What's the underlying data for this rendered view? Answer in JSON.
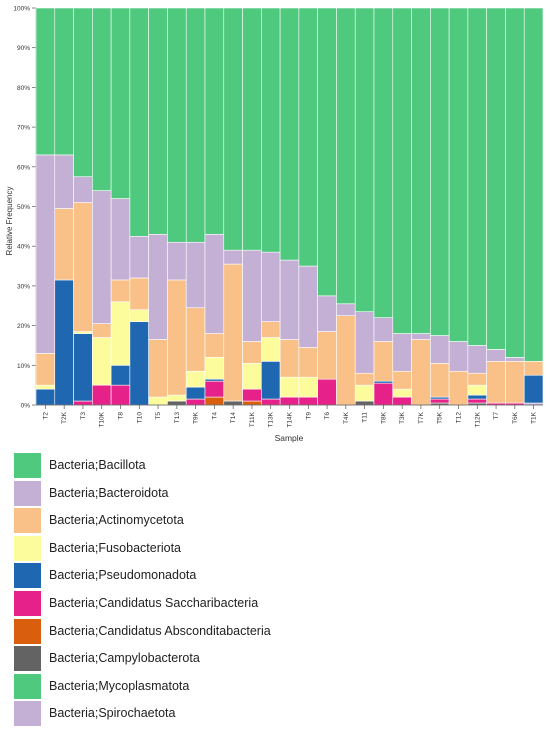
{
  "chart_data": {
    "type": "bar",
    "stacked": true,
    "xlabel": "Sample",
    "ylabel": "Relative Frequency",
    "ylim": [
      0,
      1
    ],
    "yticks": [
      "0%",
      "10%",
      "20%",
      "30%",
      "40%",
      "50%",
      "60%",
      "70%",
      "80%",
      "90%",
      "100%"
    ],
    "categories": [
      "T2",
      "T2K",
      "T3",
      "T10K",
      "T8",
      "T10",
      "T5",
      "T13",
      "T9K",
      "T4",
      "T14",
      "T11K",
      "T13K",
      "T14K",
      "T9",
      "T6",
      "T4K",
      "T11",
      "T8K",
      "T3K",
      "T7K",
      "T5K",
      "T12",
      "T12K",
      "T7",
      "T6K",
      "T1K"
    ],
    "series": [
      {
        "name": "Bacteria;Spirochaetota",
        "color": "#c5b0d5",
        "values": [
          0,
          0,
          0,
          0,
          0,
          0,
          0,
          0,
          0,
          0,
          0,
          0,
          0,
          0,
          0,
          0,
          0,
          0,
          0,
          0,
          0,
          0,
          0,
          0,
          0,
          0,
          0.005
        ]
      },
      {
        "name": "Bacteria;Mycoplasmatota",
        "color": "#4ec97d",
        "values": [
          0,
          0,
          0,
          0,
          0,
          0,
          0,
          0,
          0,
          0,
          0,
          0,
          0,
          0,
          0,
          0,
          0,
          0,
          0,
          0,
          0,
          0,
          0,
          0,
          0,
          0,
          0
        ]
      },
      {
        "name": "Bacteria;Campylobacterota",
        "color": "#636363",
        "values": [
          0,
          0,
          0,
          0,
          0,
          0,
          0,
          0.01,
          0,
          0,
          0.01,
          0,
          0,
          0,
          0,
          0,
          0,
          0.01,
          0,
          0,
          0,
          0.005,
          0,
          0.005,
          0,
          0,
          0
        ]
      },
      {
        "name": "Bacteria;Candidatus Absconditabacteria",
        "color": "#d95f0e",
        "values": [
          0,
          0,
          0,
          0,
          0,
          0,
          0,
          0,
          0,
          0.02,
          0,
          0.01,
          0,
          0,
          0,
          0,
          0,
          0,
          0,
          0,
          0,
          0,
          0,
          0,
          0,
          0,
          0
        ]
      },
      {
        "name": "Bacteria;Candidatus Saccharibacteria",
        "color": "#e7218a",
        "values": [
          0,
          0,
          0.01,
          0.05,
          0.05,
          0,
          0,
          0,
          0.015,
          0.04,
          0,
          0.03,
          0.015,
          0.02,
          0.02,
          0.065,
          0,
          0,
          0.055,
          0.02,
          0,
          0.01,
          0,
          0.01,
          0.005,
          0.005,
          0
        ]
      },
      {
        "name": "Bacteria;Pseudomonadota",
        "color": "#1f67b0",
        "values": [
          0.04,
          0.315,
          0.17,
          0,
          0.05,
          0.21,
          0,
          0,
          0.03,
          0.005,
          0,
          0,
          0.095,
          0,
          0,
          0,
          0,
          0,
          0.005,
          0,
          0,
          0.005,
          0,
          0.01,
          0,
          0,
          0.07
        ]
      },
      {
        "name": "Bacteria;Fusobacteriota",
        "color": "#fcfc9c",
        "values": [
          0.01,
          0,
          0.005,
          0.12,
          0.16,
          0.03,
          0.02,
          0.015,
          0.04,
          0.055,
          0,
          0.065,
          0.06,
          0.05,
          0.05,
          0,
          0,
          0.04,
          0,
          0.02,
          0,
          0,
          0,
          0.025,
          0,
          0,
          0
        ]
      },
      {
        "name": "Bacteria;Actinomycetota",
        "color": "#f9c188",
        "values": [
          0.08,
          0.18,
          0.325,
          0.035,
          0.055,
          0.08,
          0.145,
          0.29,
          0.16,
          0.06,
          0.345,
          0.055,
          0.04,
          0.095,
          0.075,
          0.12,
          0.225,
          0.03,
          0.1,
          0.045,
          0.165,
          0.085,
          0.085,
          0.03,
          0.105,
          0.105,
          0.035
        ]
      },
      {
        "name": "Bacteria;Bacteroidota",
        "color": "#c5b0d5",
        "values": [
          0.5,
          0.135,
          0.065,
          0.335,
          0.205,
          0.105,
          0.265,
          0.095,
          0.165,
          0.25,
          0.035,
          0.23,
          0.175,
          0.2,
          0.205,
          0.09,
          0.03,
          0.155,
          0.06,
          0.095,
          0.015,
          0.07,
          0.075,
          0.07,
          0.03,
          0.01,
          0
        ]
      },
      {
        "name": "Bacteria;Bacillota",
        "color": "#4ec97d",
        "values": [
          0.37,
          0.37,
          0.425,
          0.46,
          0.48,
          0.575,
          0.57,
          0.59,
          0.59,
          0.57,
          0.61,
          0.61,
          0.615,
          0.635,
          0.65,
          0.725,
          0.745,
          0.765,
          0.78,
          0.82,
          0.82,
          0.825,
          0.84,
          0.85,
          0.86,
          0.88,
          0.89
        ]
      }
    ]
  },
  "legend": [
    {
      "label": "Bacteria;Bacillota",
      "color": "#4ec97d"
    },
    {
      "label": "Bacteria;Bacteroidota",
      "color": "#c5b0d5"
    },
    {
      "label": "Bacteria;Actinomycetota",
      "color": "#f9c188"
    },
    {
      "label": "Bacteria;Fusobacteriota",
      "color": "#fcfc9c"
    },
    {
      "label": "Bacteria;Pseudomonadota",
      "color": "#1f67b0"
    },
    {
      "label": "Bacteria;Candidatus Saccharibacteria",
      "color": "#e7218a"
    },
    {
      "label": "Bacteria;Candidatus Absconditabacteria",
      "color": "#d95f0e"
    },
    {
      "label": "Bacteria;Campylobacterota",
      "color": "#636363"
    },
    {
      "label": "Bacteria;Mycoplasmatota",
      "color": "#4ec97d"
    },
    {
      "label": "Bacteria;Spirochaetota",
      "color": "#c5b0d5"
    }
  ]
}
